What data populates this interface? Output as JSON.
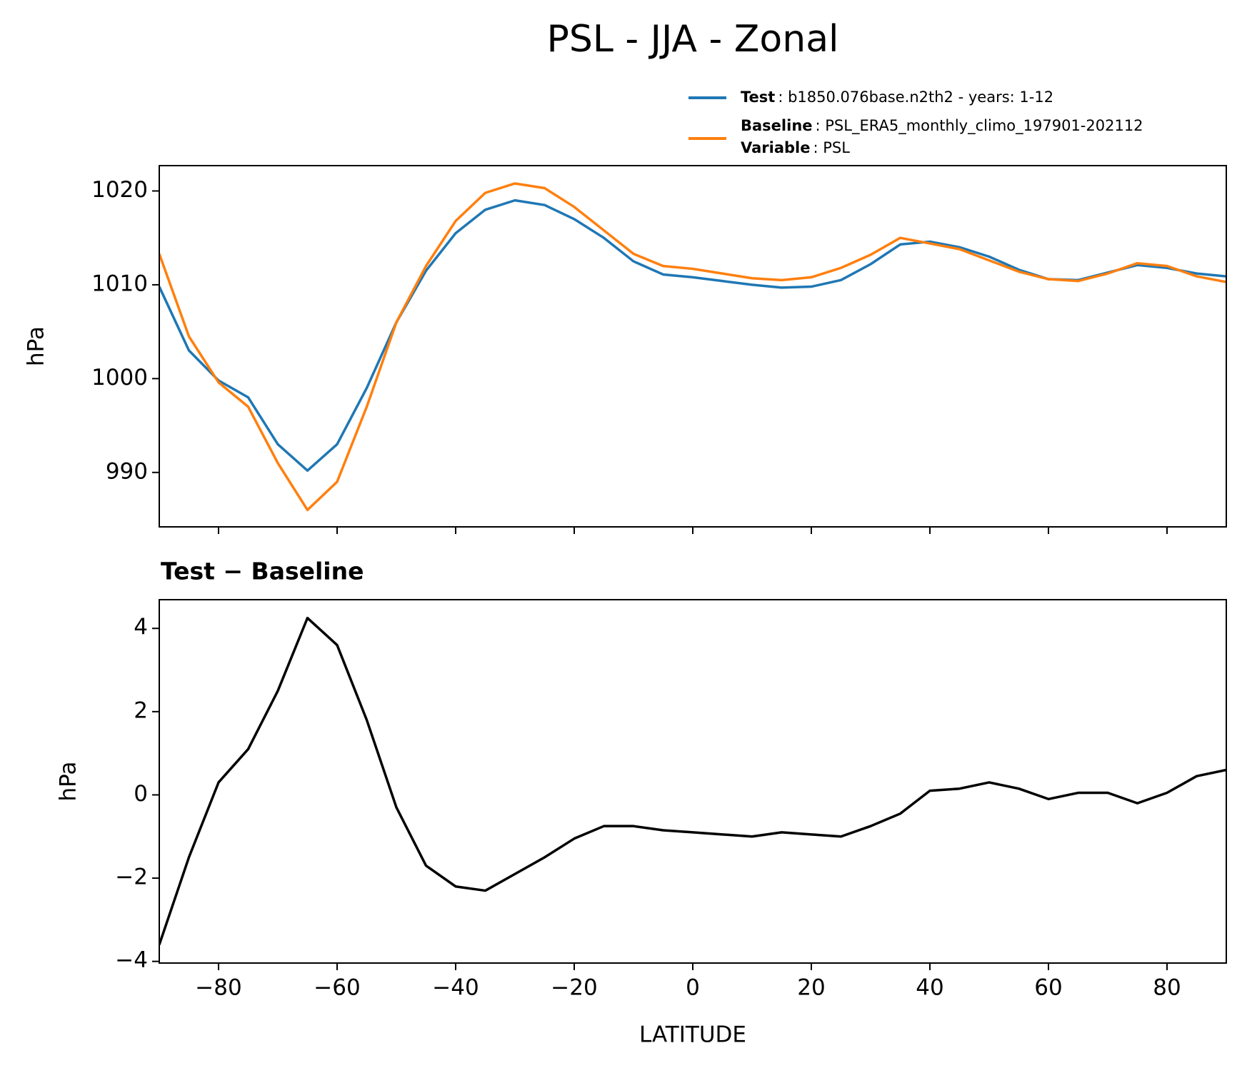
{
  "title": "PSL - JJA - Zonal",
  "chart_data": [
    {
      "type": "line",
      "ylabel": "hPa",
      "x": [
        -90,
        -85,
        -80,
        -75,
        -70,
        -65,
        -60,
        -55,
        -50,
        -45,
        -40,
        -35,
        -30,
        -25,
        -20,
        -15,
        -10,
        -5,
        0,
        5,
        10,
        15,
        20,
        25,
        30,
        35,
        40,
        45,
        50,
        55,
        60,
        65,
        70,
        75,
        80,
        85,
        90
      ],
      "series": [
        {
          "name": "Test",
          "detail": ": b1850.076base.n2th2 - years: 1-12",
          "color": "#1f77b4",
          "values": [
            1009.8,
            1003,
            999.8,
            998,
            993,
            990.2,
            993,
            999,
            1006,
            1011.5,
            1015.5,
            1018,
            1019,
            1018.5,
            1017,
            1015,
            1012.5,
            1011.1,
            1010.8,
            1010.4,
            1010,
            1009.7,
            1009.8,
            1010.5,
            1012.2,
            1014.3,
            1014.6,
            1014.0,
            1013.0,
            1011.6,
            1010.6,
            1010.5,
            1011.3,
            1012.1,
            1011.8,
            1011.2,
            1010.9
          ]
        },
        {
          "name": "Baseline",
          "detail": ": PSL_ERA5_monthly_climo_197901-202112",
          "extra_name": "Variable",
          "extra_detail": ": PSL",
          "color": "#ff7f0e",
          "values": [
            1013.3,
            1004.5,
            999.6,
            997,
            991,
            986,
            989,
            997,
            1006,
            1012,
            1016.8,
            1019.8,
            1020.8,
            1020.3,
            1018.3,
            1015.8,
            1013.3,
            1012,
            1011.7,
            1011.2,
            1010.7,
            1010.5,
            1010.8,
            1011.8,
            1013.2,
            1015,
            1014.4,
            1013.8,
            1012.6,
            1011.4,
            1010.6,
            1010.4,
            1011.2,
            1012.3,
            1012,
            1010.9,
            1010.3
          ]
        }
      ],
      "xlim": [
        -90,
        90
      ],
      "xticks": [
        -80,
        -60,
        -40,
        -20,
        0,
        20,
        40,
        60,
        80
      ],
      "ylim": [
        984.2,
        1022.7
      ],
      "yticks": [
        990,
        1000,
        1010,
        1020
      ]
    },
    {
      "type": "line",
      "title": "Test − Baseline",
      "ylabel": "hPa",
      "xlabel": "LATITUDE",
      "x": [
        -90,
        -85,
        -80,
        -75,
        -70,
        -65,
        -60,
        -55,
        -50,
        -45,
        -40,
        -35,
        -30,
        -25,
        -20,
        -15,
        -10,
        -5,
        0,
        5,
        10,
        15,
        20,
        25,
        30,
        35,
        40,
        45,
        50,
        55,
        60,
        65,
        70,
        75,
        80,
        85,
        90
      ],
      "series": [
        {
          "color": "#000000",
          "values": [
            -3.6,
            -1.5,
            0.3,
            1.1,
            2.5,
            4.25,
            3.6,
            1.8,
            -0.3,
            -1.7,
            -2.2,
            -2.3,
            -1.9,
            -1.5,
            -1.05,
            -0.75,
            -0.75,
            -0.85,
            -0.9,
            -0.95,
            -1.0,
            -0.9,
            -0.95,
            -1.0,
            -0.75,
            -0.45,
            0.1,
            0.15,
            0.3,
            0.15,
            -0.1,
            0.05,
            0.05,
            -0.2,
            0.05,
            0.45,
            0.6
          ]
        }
      ],
      "xlim": [
        -90,
        90
      ],
      "xticks": [
        {
          "value": -80,
          "label": "−80"
        },
        {
          "value": -60,
          "label": "−60"
        },
        {
          "value": -40,
          "label": "−40"
        },
        {
          "value": -20,
          "label": "−20"
        },
        0,
        20,
        40,
        60,
        80
      ],
      "ylim": [
        -4.04,
        4.69
      ],
      "yticks": [
        {
          "value": -4,
          "label": "−4"
        },
        {
          "value": -2,
          "label": "−2"
        },
        0,
        2,
        4
      ]
    }
  ]
}
